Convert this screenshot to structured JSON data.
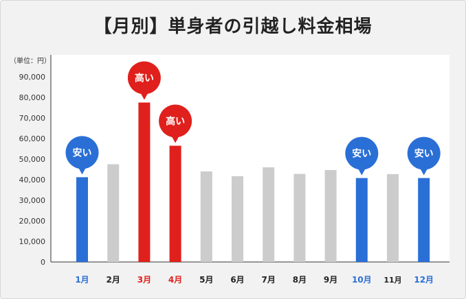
{
  "title": "【月別】単身者の引越し料金相場",
  "unit_label": "（単位：円）",
  "chart_data": {
    "type": "bar",
    "categories": [
      "1月",
      "2月",
      "3月",
      "4月",
      "5月",
      "6月",
      "7月",
      "8月",
      "9月",
      "10月",
      "11月",
      "12月"
    ],
    "values": [
      41200,
      47500,
      77500,
      56500,
      44000,
      41700,
      46000,
      42800,
      44700,
      40800,
      42700,
      40800
    ],
    "ylim": [
      0,
      90000
    ],
    "yticks": [
      0,
      10000,
      20000,
      30000,
      40000,
      50000,
      60000,
      70000,
      80000,
      90000
    ],
    "ytick_labels": [
      "0",
      "10,000",
      "20,000",
      "30,000",
      "40,000",
      "50,000",
      "60,000",
      "70,000",
      "80,000",
      "90,000"
    ],
    "bar_status": [
      "low",
      "normal",
      "high",
      "high",
      "normal",
      "normal",
      "normal",
      "normal",
      "normal",
      "low",
      "normal",
      "low"
    ],
    "badges": {
      "low": "安い",
      "high": "高い"
    },
    "colors": {
      "low": "#2a6fd6",
      "high": "#e0201c",
      "normal": "#cccccc",
      "label_normal": "#222222",
      "axis": "#333333"
    },
    "grid": false
  }
}
